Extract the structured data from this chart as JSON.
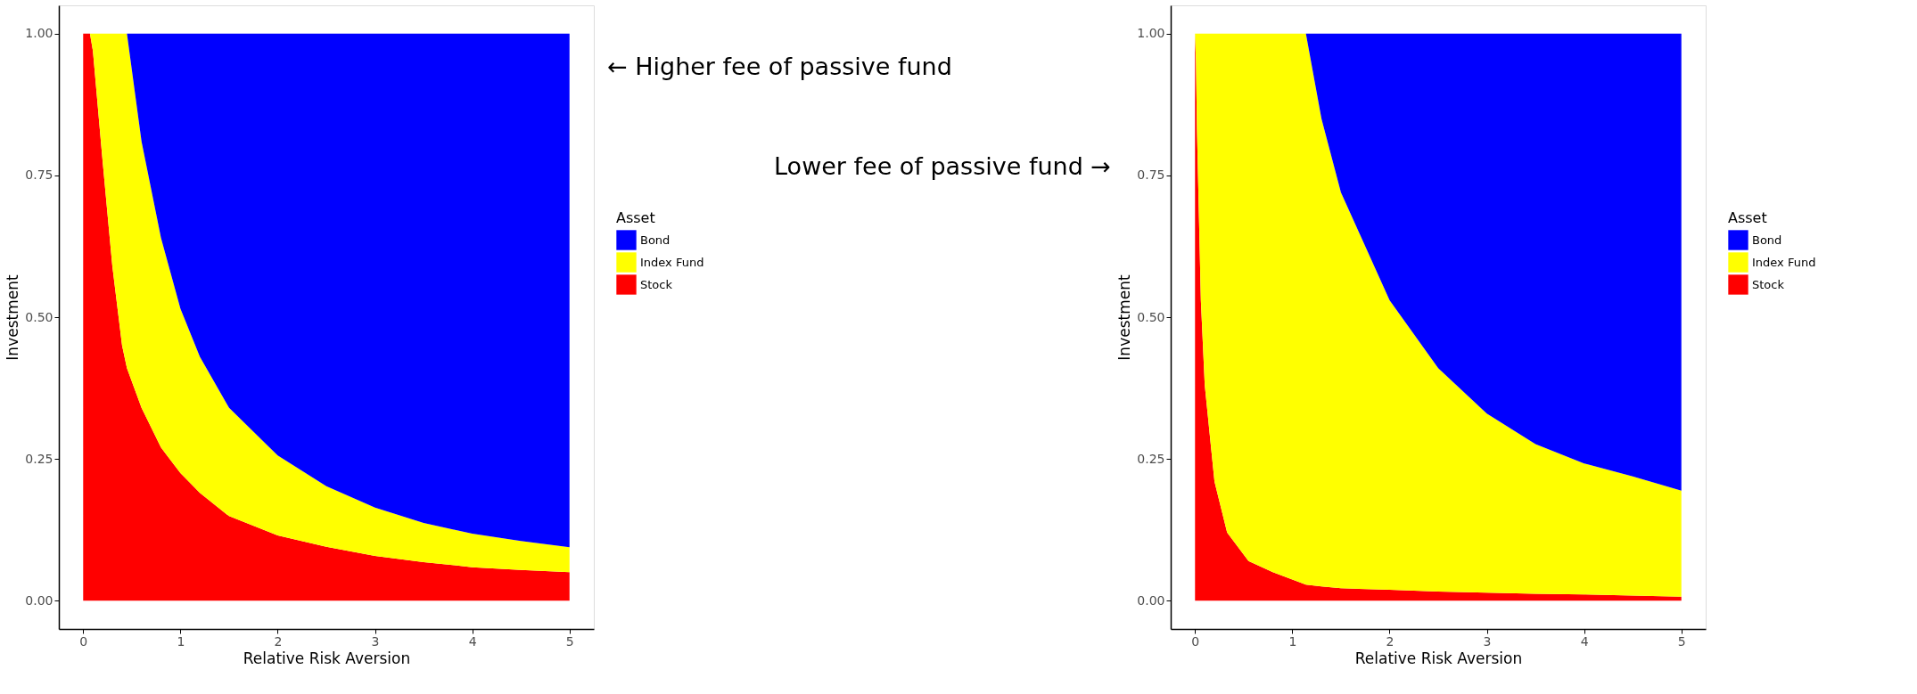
{
  "chart_data": [
    {
      "type": "area",
      "stacked": true,
      "xlabel": "Relative Risk Aversion",
      "ylabel": "Investment",
      "legend_title": "Asset",
      "legend": "right",
      "grid": false,
      "x": [
        0,
        0.07,
        0.1,
        0.2,
        0.3,
        0.4,
        0.45,
        0.6,
        0.8,
        1,
        1.2,
        1.5,
        2,
        2.5,
        3,
        3.5,
        4,
        4.5,
        5
      ],
      "series": [
        {
          "name": "Stock",
          "color": "#ff0000",
          "values": [
            1.0,
            1.0,
            0.97,
            0.775,
            0.59,
            0.45,
            0.41,
            0.34,
            0.27,
            0.225,
            0.19,
            0.149,
            0.115,
            0.095,
            0.079,
            0.068,
            0.059,
            0.054,
            0.05
          ]
        },
        {
          "name": "Index Fund",
          "color": "#ffff00",
          "values": [
            0,
            0,
            0.03,
            0.225,
            0.41,
            0.55,
            0.59,
            0.47,
            0.37,
            0.29,
            0.24,
            0.191,
            0.141,
            0.107,
            0.085,
            0.069,
            0.059,
            0.051,
            0.044
          ]
        },
        {
          "name": "Bond",
          "color": "#0000ff",
          "values": [
            0,
            0,
            0,
            0,
            0,
            0,
            0,
            0.19,
            0.36,
            0.485,
            0.57,
            0.66,
            0.744,
            0.798,
            0.836,
            0.863,
            0.882,
            0.895,
            0.906
          ]
        }
      ],
      "xlim": [
        -0.25,
        5.25
      ],
      "xticks": [
        0,
        1,
        2,
        3,
        4,
        5
      ],
      "ylim": [
        -0.05,
        1.05
      ],
      "yticks": [
        {
          "value": 0,
          "label": "0.00"
        },
        {
          "value": 0.25,
          "label": "0.25"
        },
        {
          "value": 0.5,
          "label": "0.50"
        },
        {
          "value": 0.75,
          "label": "0.75"
        },
        {
          "value": 1,
          "label": "1.00"
        }
      ],
      "annotations": [
        "← Higher fee of passive fund"
      ]
    },
    {
      "type": "area",
      "stacked": true,
      "xlabel": "Relative Risk Aversion",
      "ylabel": "Investment",
      "legend_title": "Asset",
      "legend": "right",
      "grid": false,
      "x": [
        0,
        0.01,
        0.02,
        0.06,
        0.1,
        0.2,
        0.33,
        0.55,
        0.8,
        1.14,
        1.3,
        1.5,
        2,
        2.5,
        3,
        3.5,
        4,
        4.5,
        5
      ],
      "series": [
        {
          "name": "Stock",
          "color": "#ff0000",
          "values": [
            1.0,
            0.95,
            0.83,
            0.53,
            0.38,
            0.21,
            0.12,
            0.07,
            0.05,
            0.028,
            0.025,
            0.022,
            0.019,
            0.016,
            0.014,
            0.012,
            0.011,
            0.009,
            0.007
          ]
        },
        {
          "name": "Index Fund",
          "color": "#ffff00",
          "values": [
            0,
            0.05,
            0.17,
            0.47,
            0.62,
            0.79,
            0.88,
            0.93,
            0.95,
            0.972,
            0.825,
            0.698,
            0.511,
            0.394,
            0.316,
            0.264,
            0.231,
            0.21,
            0.187
          ]
        },
        {
          "name": "Bond",
          "color": "#0000ff",
          "values": [
            0,
            0,
            0,
            0,
            0,
            0,
            0,
            0,
            0,
            0,
            0.15,
            0.28,
            0.47,
            0.59,
            0.67,
            0.724,
            0.758,
            0.781,
            0.806
          ]
        }
      ],
      "xlim": [
        -0.25,
        5.25
      ],
      "xticks": [
        0,
        1,
        2,
        3,
        4,
        5
      ],
      "ylim": [
        -0.05,
        1.05
      ],
      "yticks": [
        {
          "value": 0,
          "label": "0.00"
        },
        {
          "value": 0.25,
          "label": "0.25"
        },
        {
          "value": 0.5,
          "label": "0.50"
        },
        {
          "value": 0.75,
          "label": "0.75"
        },
        {
          "value": 1,
          "label": "1.00"
        }
      ],
      "annotations": [
        "Lower fee of passive fund →"
      ]
    }
  ]
}
